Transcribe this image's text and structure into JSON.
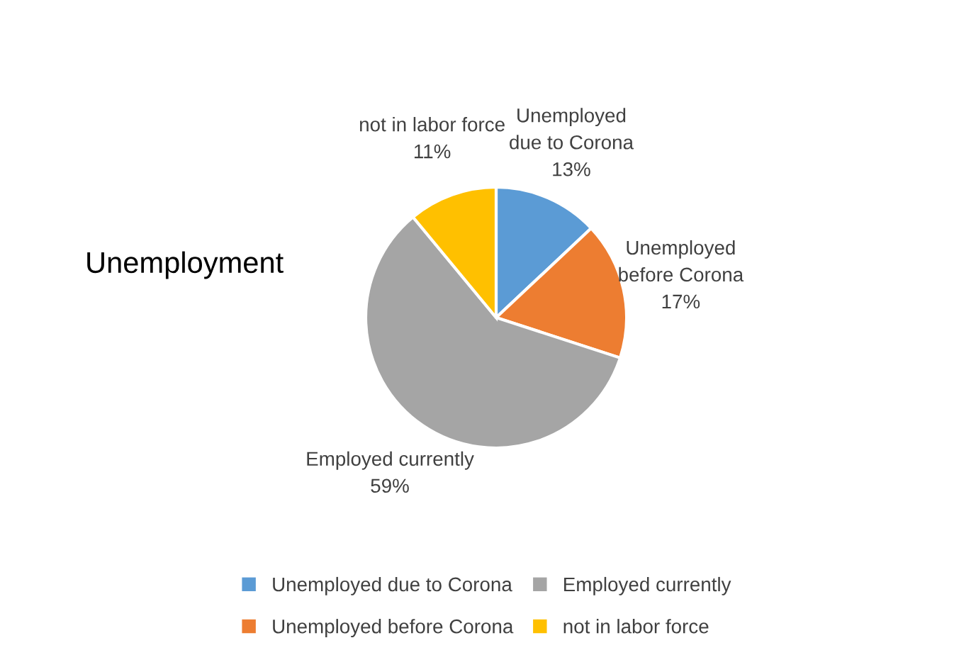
{
  "chart_data": {
    "type": "pie",
    "title": "Unemployment",
    "categories": [
      "Unemployed due to Corona",
      "Unemployed before Corona",
      "Employed currently",
      "not in labor force"
    ],
    "values": [
      13,
      17,
      59,
      11
    ],
    "value_labels": [
      "13%",
      "17%",
      "59%",
      "11%"
    ],
    "colors": [
      "#5b9bd5",
      "#ed7d31",
      "#a5a5a5",
      "#ffc000"
    ],
    "legend": "bottom"
  }
}
